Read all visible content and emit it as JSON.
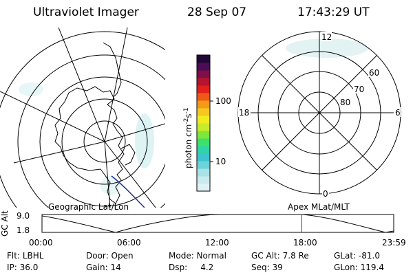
{
  "header": {
    "instrument": "Ultraviolet Imager",
    "date": "28 Sep 07",
    "time": "17:43:29 UT"
  },
  "colors": {
    "colorbar": [
      "#dff1f3",
      "#c9ebee",
      "#a8e2e6",
      "#6dd3da",
      "#3ec4d0",
      "#2fd5a8",
      "#3ee06a",
      "#7fe63a",
      "#c8ea2a",
      "#f0ec20",
      "#f4c81e",
      "#f49a18",
      "#ee5a16",
      "#e2201c",
      "#b4142e",
      "#7e0f48",
      "#4a0d56",
      "#220838"
    ],
    "satellite_track": "#1f2f96",
    "time_marker": "#e00000"
  },
  "colorbar": {
    "unit_label": "photon cm",
    "unit_exp1": "-2",
    "unit_mid": "s",
    "unit_exp2": "-1",
    "ticks": [
      {
        "label": "100",
        "value": 100
      },
      {
        "label": "10",
        "value": 10
      }
    ]
  },
  "geo_panel": {
    "title": "Geographic Lat/Lon"
  },
  "mag_panel": {
    "title": "Apex MLat/MLT",
    "mlt_labels": [
      {
        "label": "12",
        "pos": "top"
      },
      {
        "label": "6",
        "pos": "right"
      },
      {
        "label": "0",
        "pos": "bottom"
      },
      {
        "label": "18",
        "pos": "left"
      }
    ],
    "mlat_labels": [
      "60",
      "70",
      "80"
    ]
  },
  "altitude_plot": {
    "ylabel": "GC Alt",
    "yticks": [
      "9.0",
      "1.8"
    ],
    "xticks": [
      "00:00",
      "06:00",
      "12:00",
      "18:00",
      "23:59"
    ],
    "current_time_hours": 17.73
  },
  "footer": {
    "row1": [
      {
        "key": "Flt:",
        "value": "LBHL"
      },
      {
        "key": "Door:",
        "value": "Open"
      },
      {
        "key": "Mode:",
        "value": "Normal"
      },
      {
        "key": "GC Alt:",
        "value": "7.8 Re"
      },
      {
        "key": "GLat:",
        "value": "-81.0"
      }
    ],
    "row2": [
      {
        "key": "IP:",
        "value": "36.0"
      },
      {
        "key": "Gain:",
        "value": "14"
      },
      {
        "key": "Dsp:",
        "value": "4.2"
      },
      {
        "key": "Seq:",
        "value": "39"
      },
      {
        "key": "GLon:",
        "value": "119.4"
      }
    ]
  }
}
